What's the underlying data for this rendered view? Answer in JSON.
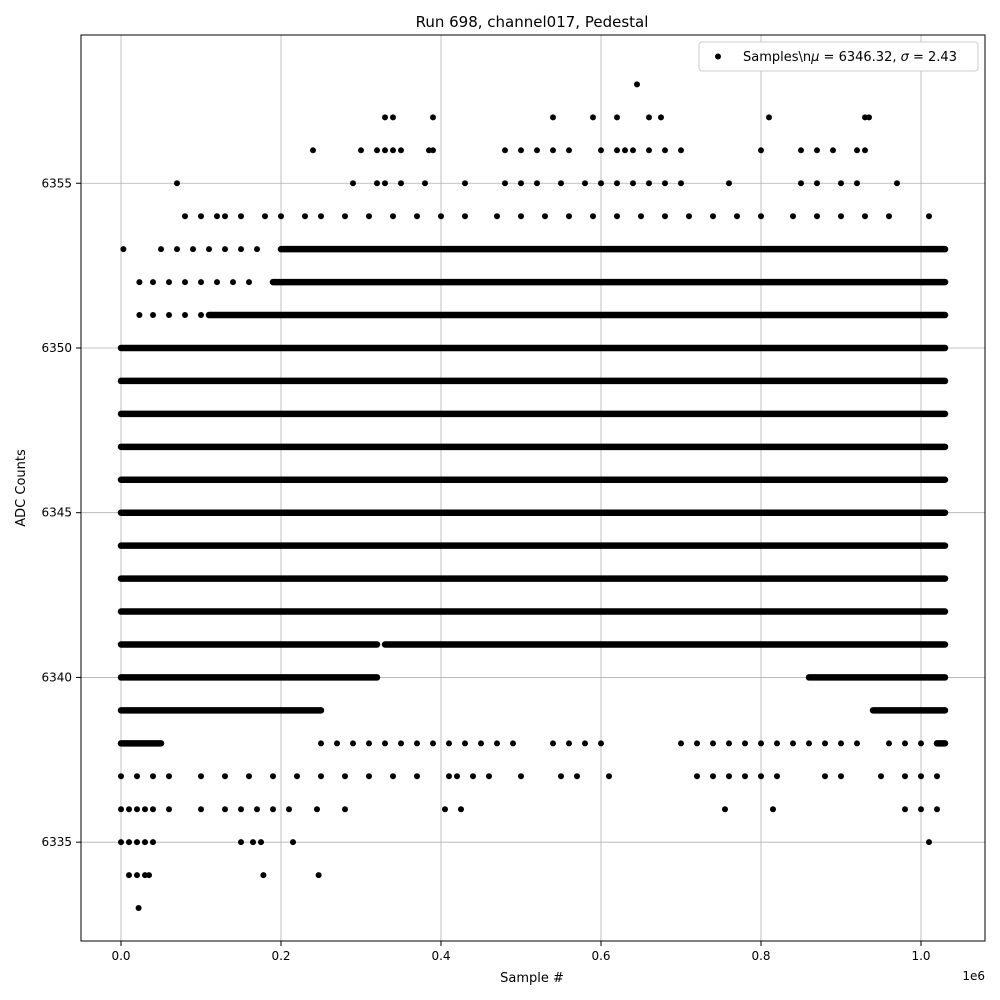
{
  "chart_data": {
    "type": "scatter",
    "title": "Run 698, channel017, Pedestal",
    "xlabel": "Sample #",
    "ylabel": "ADC Counts",
    "x_multiplier_label": "1e6",
    "xlim": [
      -0.05,
      1.08
    ],
    "ylim": [
      6332.0,
      6359.5
    ],
    "x_ticks": [
      0.0,
      0.2,
      0.4,
      0.6,
      0.8,
      1.0
    ],
    "x_tick_labels": [
      "0.0",
      "0.2",
      "0.4",
      "0.6",
      "0.8",
      "1.0"
    ],
    "y_ticks": [
      6335,
      6340,
      6345,
      6350,
      6355
    ],
    "y_tick_labels": [
      "6335",
      "6340",
      "6345",
      "6350",
      "6355"
    ],
    "grid": true,
    "legend_position": "top-right",
    "marker_color": "#000000",
    "series": [
      {
        "name": "Samples\\nμ = 6346.32, σ = 2.43",
        "legend_parts": {
          "prefix": "Samples\\n",
          "mu": "μ",
          "mean_text": " = 6346.32, ",
          "sigma": "σ",
          "std_text": " = 2.43"
        },
        "x_max": 1.03,
        "levels": [
          {
            "y": 6350,
            "ranges": [
              [
                0.0,
                1.03
              ]
            ]
          },
          {
            "y": 6349,
            "ranges": [
              [
                0.0,
                1.03
              ]
            ]
          },
          {
            "y": 6348,
            "ranges": [
              [
                0.0,
                1.03
              ]
            ]
          },
          {
            "y": 6347,
            "ranges": [
              [
                0.0,
                1.03
              ]
            ]
          },
          {
            "y": 6346,
            "ranges": [
              [
                0.0,
                1.03
              ]
            ]
          },
          {
            "y": 6345,
            "ranges": [
              [
                0.0,
                1.03
              ]
            ]
          },
          {
            "y": 6344,
            "ranges": [
              [
                0.0,
                1.03
              ]
            ]
          },
          {
            "y": 6343,
            "ranges": [
              [
                0.0,
                1.03
              ]
            ]
          },
          {
            "y": 6342,
            "ranges": [
              [
                0.0,
                1.03
              ]
            ]
          },
          {
            "y": 6341,
            "ranges": [
              [
                0.0,
                0.32
              ],
              [
                0.33,
                1.03
              ]
            ]
          },
          {
            "y": 6353,
            "ranges": [
              [
                0.2,
                1.03
              ]
            ]
          },
          {
            "y": 6352,
            "ranges": [
              [
                0.19,
                1.03
              ]
            ]
          },
          {
            "y": 6351,
            "ranges": [
              [
                0.11,
                1.03
              ]
            ]
          },
          {
            "y": 6340,
            "ranges": [
              [
                0.0,
                0.32
              ],
              [
                0.86,
                1.03
              ]
            ]
          },
          {
            "y": 6339,
            "ranges": [
              [
                0.0,
                0.25
              ],
              [
                0.94,
                1.03
              ]
            ]
          },
          {
            "y": 6338,
            "ranges": [
              [
                0.0,
                0.05
              ],
              [
                1.02,
                1.03
              ]
            ]
          }
        ],
        "points": [
          [
            0.003,
            6353
          ],
          [
            0.07,
            6355
          ],
          [
            0.24,
            6356
          ],
          [
            0.3,
            6356
          ],
          [
            0.33,
            6357
          ],
          [
            0.34,
            6357
          ],
          [
            0.39,
            6357
          ],
          [
            0.54,
            6357
          ],
          [
            0.59,
            6357
          ],
          [
            0.62,
            6357
          ],
          [
            0.645,
            6358
          ],
          [
            0.66,
            6357
          ],
          [
            0.675,
            6357
          ],
          [
            0.81,
            6357
          ],
          [
            0.93,
            6357
          ],
          [
            0.935,
            6357
          ],
          [
            0.32,
            6356
          ],
          [
            0.33,
            6356
          ],
          [
            0.34,
            6356
          ],
          [
            0.35,
            6356
          ],
          [
            0.385,
            6356
          ],
          [
            0.39,
            6356
          ],
          [
            0.48,
            6356
          ],
          [
            0.5,
            6356
          ],
          [
            0.52,
            6356
          ],
          [
            0.54,
            6356
          ],
          [
            0.56,
            6356
          ],
          [
            0.6,
            6356
          ],
          [
            0.62,
            6356
          ],
          [
            0.63,
            6356
          ],
          [
            0.64,
            6356
          ],
          [
            0.66,
            6356
          ],
          [
            0.68,
            6356
          ],
          [
            0.7,
            6356
          ],
          [
            0.8,
            6356
          ],
          [
            0.85,
            6356
          ],
          [
            0.87,
            6356
          ],
          [
            0.89,
            6356
          ],
          [
            0.92,
            6356
          ],
          [
            0.93,
            6356
          ],
          [
            0.29,
            6355
          ],
          [
            0.32,
            6355
          ],
          [
            0.33,
            6355
          ],
          [
            0.35,
            6355
          ],
          [
            0.38,
            6355
          ],
          [
            0.43,
            6355
          ],
          [
            0.48,
            6355
          ],
          [
            0.5,
            6355
          ],
          [
            0.52,
            6355
          ],
          [
            0.55,
            6355
          ],
          [
            0.58,
            6355
          ],
          [
            0.6,
            6355
          ],
          [
            0.62,
            6355
          ],
          [
            0.64,
            6355
          ],
          [
            0.66,
            6355
          ],
          [
            0.68,
            6355
          ],
          [
            0.7,
            6355
          ],
          [
            0.76,
            6355
          ],
          [
            0.85,
            6355
          ],
          [
            0.87,
            6355
          ],
          [
            0.9,
            6355
          ],
          [
            0.92,
            6355
          ],
          [
            0.97,
            6355
          ],
          [
            0.08,
            6354
          ],
          [
            0.1,
            6354
          ],
          [
            0.12,
            6354
          ],
          [
            0.13,
            6354
          ],
          [
            0.15,
            6354
          ],
          [
            0.18,
            6354
          ],
          [
            0.2,
            6354
          ],
          [
            0.23,
            6354
          ],
          [
            0.25,
            6354
          ],
          [
            0.28,
            6354
          ],
          [
            0.31,
            6354
          ],
          [
            0.34,
            6354
          ],
          [
            0.37,
            6354
          ],
          [
            0.4,
            6354
          ],
          [
            0.43,
            6354
          ],
          [
            0.47,
            6354
          ],
          [
            0.5,
            6354
          ],
          [
            0.53,
            6354
          ],
          [
            0.56,
            6354
          ],
          [
            0.59,
            6354
          ],
          [
            0.62,
            6354
          ],
          [
            0.65,
            6354
          ],
          [
            0.68,
            6354
          ],
          [
            0.71,
            6354
          ],
          [
            0.74,
            6354
          ],
          [
            0.77,
            6354
          ],
          [
            0.8,
            6354
          ],
          [
            0.84,
            6354
          ],
          [
            0.87,
            6354
          ],
          [
            0.9,
            6354
          ],
          [
            0.93,
            6354
          ],
          [
            0.96,
            6354
          ],
          [
            1.01,
            6354
          ],
          [
            0.05,
            6353
          ],
          [
            0.07,
            6353
          ],
          [
            0.09,
            6353
          ],
          [
            0.11,
            6353
          ],
          [
            0.13,
            6353
          ],
          [
            0.15,
            6353
          ],
          [
            0.17,
            6353
          ],
          [
            0.023,
            6352
          ],
          [
            0.04,
            6352
          ],
          [
            0.06,
            6352
          ],
          [
            0.08,
            6352
          ],
          [
            0.1,
            6352
          ],
          [
            0.12,
            6352
          ],
          [
            0.14,
            6352
          ],
          [
            0.16,
            6352
          ],
          [
            0.023,
            6351
          ],
          [
            0.04,
            6351
          ],
          [
            0.06,
            6351
          ],
          [
            0.08,
            6351
          ],
          [
            0.1,
            6351
          ],
          [
            0.25,
            6338
          ],
          [
            0.27,
            6338
          ],
          [
            0.29,
            6338
          ],
          [
            0.31,
            6338
          ],
          [
            0.33,
            6338
          ],
          [
            0.35,
            6338
          ],
          [
            0.37,
            6338
          ],
          [
            0.39,
            6338
          ],
          [
            0.41,
            6338
          ],
          [
            0.43,
            6338
          ],
          [
            0.45,
            6338
          ],
          [
            0.47,
            6338
          ],
          [
            0.49,
            6338
          ],
          [
            0.54,
            6338
          ],
          [
            0.56,
            6338
          ],
          [
            0.58,
            6338
          ],
          [
            0.6,
            6338
          ],
          [
            0.7,
            6338
          ],
          [
            0.72,
            6338
          ],
          [
            0.74,
            6338
          ],
          [
            0.76,
            6338
          ],
          [
            0.78,
            6338
          ],
          [
            0.8,
            6338
          ],
          [
            0.82,
            6338
          ],
          [
            0.84,
            6338
          ],
          [
            0.86,
            6338
          ],
          [
            0.88,
            6338
          ],
          [
            0.9,
            6338
          ],
          [
            0.92,
            6338
          ],
          [
            0.96,
            6338
          ],
          [
            0.98,
            6338
          ],
          [
            1.0,
            6338
          ],
          [
            0.0,
            6337
          ],
          [
            0.02,
            6337
          ],
          [
            0.04,
            6337
          ],
          [
            0.06,
            6337
          ],
          [
            0.1,
            6337
          ],
          [
            0.13,
            6337
          ],
          [
            0.16,
            6337
          ],
          [
            0.19,
            6337
          ],
          [
            0.22,
            6337
          ],
          [
            0.25,
            6337
          ],
          [
            0.28,
            6337
          ],
          [
            0.31,
            6337
          ],
          [
            0.34,
            6337
          ],
          [
            0.37,
            6337
          ],
          [
            0.41,
            6337
          ],
          [
            0.42,
            6337
          ],
          [
            0.44,
            6337
          ],
          [
            0.46,
            6337
          ],
          [
            0.5,
            6337
          ],
          [
            0.55,
            6337
          ],
          [
            0.57,
            6337
          ],
          [
            0.61,
            6337
          ],
          [
            0.72,
            6337
          ],
          [
            0.74,
            6337
          ],
          [
            0.76,
            6337
          ],
          [
            0.78,
            6337
          ],
          [
            0.8,
            6337
          ],
          [
            0.82,
            6337
          ],
          [
            0.88,
            6337
          ],
          [
            0.9,
            6337
          ],
          [
            0.95,
            6337
          ],
          [
            0.98,
            6337
          ],
          [
            1.0,
            6337
          ],
          [
            1.02,
            6337
          ],
          [
            0.0,
            6336
          ],
          [
            0.01,
            6336
          ],
          [
            0.02,
            6336
          ],
          [
            0.03,
            6336
          ],
          [
            0.04,
            6336
          ],
          [
            0.06,
            6336
          ],
          [
            0.1,
            6336
          ],
          [
            0.13,
            6336
          ],
          [
            0.15,
            6336
          ],
          [
            0.17,
            6336
          ],
          [
            0.19,
            6336
          ],
          [
            0.21,
            6336
          ],
          [
            0.245,
            6336
          ],
          [
            0.28,
            6336
          ],
          [
            0.405,
            6336
          ],
          [
            0.425,
            6336
          ],
          [
            0.755,
            6336
          ],
          [
            0.815,
            6336
          ],
          [
            0.98,
            6336
          ],
          [
            1.0,
            6336
          ],
          [
            1.02,
            6336
          ],
          [
            0.0,
            6335
          ],
          [
            0.01,
            6335
          ],
          [
            0.02,
            6335
          ],
          [
            0.03,
            6335
          ],
          [
            0.04,
            6335
          ],
          [
            0.15,
            6335
          ],
          [
            0.165,
            6335
          ],
          [
            0.175,
            6335
          ],
          [
            0.215,
            6335
          ],
          [
            1.01,
            6335
          ],
          [
            0.01,
            6334
          ],
          [
            0.02,
            6334
          ],
          [
            0.03,
            6334
          ],
          [
            0.035,
            6334
          ],
          [
            0.178,
            6334
          ],
          [
            0.247,
            6334
          ],
          [
            0.022,
            6333
          ]
        ]
      }
    ]
  }
}
